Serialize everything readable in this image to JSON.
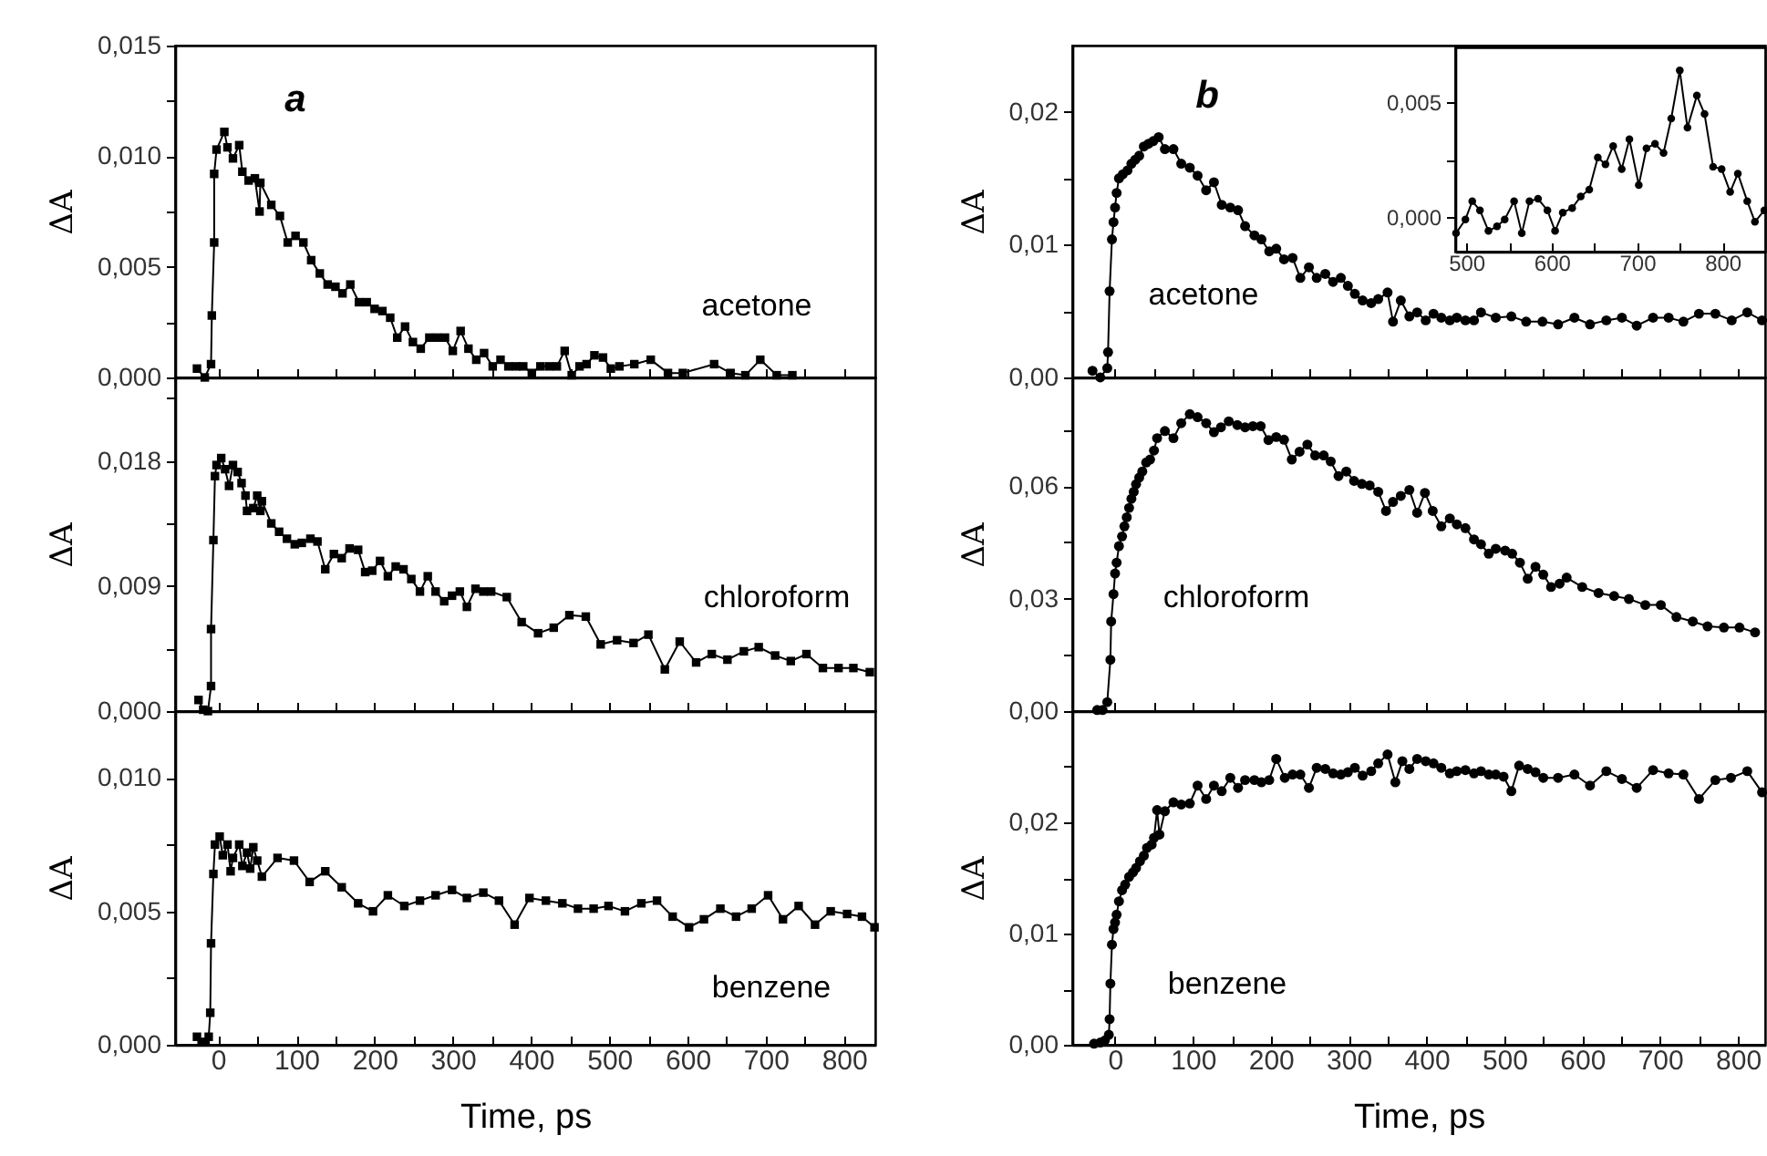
{
  "chart_data": [
    {
      "type": "line",
      "marker": "square",
      "tick_labels": "y",
      "ylabel": "ΔA",
      "xlim": [
        -55,
        840
      ],
      "ylim": [
        0,
        0.015
      ],
      "xticks": [
        0,
        {
          "value": 50,
          "label": null
        },
        100,
        {
          "value": 150,
          "label": null
        },
        200,
        {
          "value": 250,
          "label": null
        },
        300,
        {
          "value": 350,
          "label": null
        },
        400,
        {
          "value": 450,
          "label": null
        },
        500,
        {
          "value": 550,
          "label": null
        },
        600,
        {
          "value": 650,
          "label": null
        },
        700,
        {
          "value": 750,
          "label": null
        },
        800
      ],
      "yticks": [
        {
          "value": 0,
          "label": "0,000"
        },
        {
          "value": 0.0025,
          "label": null
        },
        {
          "value": 0.005,
          "label": "0,005"
        },
        {
          "value": 0.0075,
          "label": null
        },
        {
          "value": 0.01,
          "label": "0,010"
        },
        {
          "value": 0.0125,
          "label": null
        },
        {
          "value": 0.015,
          "label": "0,015"
        }
      ],
      "x": [
        -27,
        -17,
        -9,
        -8,
        -5,
        -5,
        -2,
        8,
        12,
        19,
        27,
        31,
        39,
        47,
        53,
        54,
        68,
        79,
        89,
        99,
        109,
        119,
        130,
        140,
        150,
        159,
        169,
        180,
        190,
        200,
        210,
        220,
        229,
        239,
        249,
        259,
        270,
        280,
        290,
        300,
        310,
        320,
        330,
        340,
        351,
        361,
        371,
        381,
        390,
        401,
        412,
        423,
        433,
        443,
        452,
        462,
        471,
        481,
        492,
        502,
        513,
        532,
        553,
        575,
        594,
        634,
        655,
        674,
        693,
        714,
        734
      ],
      "series": [
        {
          "color": "#000000",
          "values": [
            0.0004,
            0.0,
            0.0006,
            0.0028,
            0.0061,
            0.0092,
            0.0103,
            0.0111,
            0.0104,
            0.0099,
            0.0105,
            0.0093,
            0.0089,
            0.009,
            0.0075,
            0.0088,
            0.0078,
            0.0073,
            0.0061,
            0.0064,
            0.0061,
            0.0053,
            0.0047,
            0.0042,
            0.0041,
            0.0038,
            0.0042,
            0.0034,
            0.0034,
            0.0031,
            0.003,
            0.0027,
            0.0018,
            0.0023,
            0.0016,
            0.0013,
            0.0018,
            0.0018,
            0.0018,
            0.0012,
            0.0021,
            0.0013,
            0.0008,
            0.0011,
            0.0005,
            0.0008,
            0.0005,
            0.0005,
            0.0005,
            0.0002,
            0.0005,
            0.0005,
            0.0005,
            0.0012,
            0.0001,
            0.0005,
            0.0006,
            0.001,
            0.0009,
            0.0004,
            0.0005,
            0.0006,
            0.0008,
            0.0002,
            0.0002,
            0.0006,
            0.0002,
            0.0001,
            0.0008,
            0.0001,
            0.0001
          ]
        }
      ],
      "annotations": [
        "a",
        "acetone"
      ]
    },
    {
      "type": "line",
      "marker": "square",
      "tick_labels": "y",
      "ylabel": "ΔA",
      "xlim": [
        -55,
        840
      ],
      "ylim": [
        0,
        0.024
      ],
      "xticks": [
        0,
        {
          "value": 50,
          "label": null
        },
        100,
        {
          "value": 150,
          "label": null
        },
        200,
        {
          "value": 250,
          "label": null
        },
        300,
        {
          "value": 350,
          "label": null
        },
        400,
        {
          "value": 450,
          "label": null
        },
        500,
        {
          "value": 550,
          "label": null
        },
        600,
        {
          "value": 650,
          "label": null
        },
        700,
        {
          "value": 750,
          "label": null
        },
        800
      ],
      "yticks": [
        {
          "value": 0,
          "label": "0,000"
        },
        {
          "value": 0.0045,
          "label": null
        },
        {
          "value": 0.009,
          "label": "0,009"
        },
        {
          "value": 0.0135,
          "label": null
        },
        {
          "value": 0.018,
          "label": "0,018"
        },
        {
          "value": 0.0225,
          "label": null
        }
      ],
      "x": [
        -25,
        -19,
        -13,
        -9,
        -9,
        -6,
        -4,
        -2,
        4,
        9,
        14,
        19,
        25,
        30,
        35,
        37,
        45,
        50,
        54,
        56,
        68,
        78,
        88,
        98,
        107,
        118,
        127,
        137,
        148,
        158,
        168,
        179,
        188,
        197,
        207,
        217,
        227,
        237,
        247,
        258,
        268,
        278,
        289,
        299,
        309,
        318,
        329,
        339,
        349,
        369,
        388,
        409,
        429,
        449,
        470,
        489,
        510,
        531,
        550,
        571,
        590,
        611,
        631,
        651,
        672,
        691,
        712,
        732,
        752,
        773,
        793,
        812,
        833
      ],
      "series": [
        {
          "color": "#000000",
          "values": [
            0.0008,
            0.0001,
            0.0,
            0.0018,
            0.0059,
            0.0123,
            0.0169,
            0.0177,
            0.0182,
            0.0174,
            0.0162,
            0.0177,
            0.0172,
            0.0164,
            0.0155,
            0.0144,
            0.0146,
            0.0155,
            0.0144,
            0.0151,
            0.0135,
            0.0129,
            0.0124,
            0.012,
            0.0121,
            0.0124,
            0.0122,
            0.0102,
            0.0113,
            0.011,
            0.0117,
            0.0116,
            0.01,
            0.0101,
            0.0108,
            0.0097,
            0.0104,
            0.0102,
            0.0095,
            0.0086,
            0.0097,
            0.0086,
            0.0079,
            0.0083,
            0.0086,
            0.0075,
            0.0088,
            0.0086,
            0.0086,
            0.0082,
            0.0064,
            0.0056,
            0.006,
            0.0069,
            0.0068,
            0.0048,
            0.0051,
            0.0049,
            0.0055,
            0.003,
            0.005,
            0.0035,
            0.0041,
            0.0037,
            0.0043,
            0.0046,
            0.004,
            0.0036,
            0.0041,
            0.0031,
            0.0031,
            0.0031,
            0.0028
          ]
        }
      ],
      "annotations": [
        "chloroform"
      ]
    },
    {
      "type": "line",
      "marker": "square",
      "xlabel": "Time, ps",
      "ylabel": "ΔA",
      "xlim": [
        -55,
        840
      ],
      "ylim": [
        0,
        0.0125
      ],
      "xticks": [
        0,
        {
          "value": 50,
          "label": null
        },
        100,
        {
          "value": 150,
          "label": null
        },
        200,
        {
          "value": 250,
          "label": null
        },
        300,
        {
          "value": 350,
          "label": null
        },
        400,
        {
          "value": 450,
          "label": null
        },
        500,
        {
          "value": 550,
          "label": null
        },
        600,
        {
          "value": 650,
          "label": null
        },
        700,
        {
          "value": 750,
          "label": null
        },
        800
      ],
      "yticks": [
        {
          "value": 0,
          "label": "0,000"
        },
        {
          "value": 0.0025,
          "label": null
        },
        {
          "value": 0.005,
          "label": "0,005"
        },
        {
          "value": 0.0075,
          "label": null
        },
        {
          "value": 0.01,
          "label": "0,010"
        }
      ],
      "x": [
        -27,
        -21,
        -16,
        -12,
        -10,
        -9,
        -6,
        -4,
        2,
        6,
        12,
        16,
        19,
        27,
        31,
        37,
        41,
        45,
        50,
        56,
        76,
        97,
        117,
        137,
        158,
        179,
        198,
        217,
        238,
        258,
        278,
        299,
        318,
        339,
        359,
        379,
        398,
        419,
        440,
        460,
        480,
        499,
        520,
        541,
        561,
        581,
        602,
        621,
        642,
        662,
        682,
        703,
        722,
        742,
        763,
        783,
        804,
        823,
        839
      ],
      "series": [
        {
          "color": "#000000",
          "values": [
            0.0003,
            0.0001,
            0.0001,
            0.0003,
            0.0012,
            0.0038,
            0.0064,
            0.0075,
            0.0078,
            0.0071,
            0.0075,
            0.0065,
            0.007,
            0.0075,
            0.0067,
            0.0072,
            0.0066,
            0.0074,
            0.0069,
            0.0063,
            0.007,
            0.0069,
            0.0061,
            0.0065,
            0.0059,
            0.0053,
            0.005,
            0.0056,
            0.0052,
            0.0054,
            0.0056,
            0.0058,
            0.0055,
            0.0057,
            0.0054,
            0.0045,
            0.0055,
            0.0054,
            0.0053,
            0.0051,
            0.0051,
            0.0052,
            0.005,
            0.0053,
            0.0054,
            0.0048,
            0.0044,
            0.0047,
            0.0051,
            0.0048,
            0.0051,
            0.0056,
            0.0047,
            0.0052,
            0.0045,
            0.005,
            0.0049,
            0.0048,
            0.0044
          ]
        }
      ],
      "annotations": [
        "benzene"
      ]
    },
    {
      "type": "line",
      "marker": "circle",
      "tick_labels": "y",
      "ylabel": "ΔA",
      "xlim": [
        -55,
        835
      ],
      "ylim": [
        0,
        0.025
      ],
      "xticks": [
        0,
        {
          "value": 50,
          "label": null
        },
        100,
        {
          "value": 150,
          "label": null
        },
        200,
        {
          "value": 250,
          "label": null
        },
        300,
        {
          "value": 350,
          "label": null
        },
        400,
        {
          "value": 450,
          "label": null
        },
        500,
        {
          "value": 550,
          "label": null
        },
        600,
        {
          "value": 650,
          "label": null
        },
        700,
        {
          "value": 750,
          "label": null
        },
        800
      ],
      "yticks": [
        {
          "value": 0,
          "label": "0,00"
        },
        {
          "value": 0.005,
          "label": null
        },
        {
          "value": 0.01,
          "label": "0,01"
        },
        {
          "value": 0.015,
          "label": null
        },
        {
          "value": 0.02,
          "label": "0,02"
        }
      ],
      "x": [
        -29,
        -19,
        -10,
        -9,
        -7,
        -4,
        -2,
        0,
        2,
        5,
        10,
        16,
        21,
        26,
        31,
        37,
        43,
        49,
        56,
        64,
        75,
        85,
        96,
        106,
        117,
        127,
        137,
        148,
        158,
        167,
        179,
        188,
        198,
        207,
        217,
        228,
        238,
        249,
        259,
        270,
        280,
        290,
        299,
        308,
        318,
        329,
        338,
        350,
        357,
        367,
        378,
        388,
        399,
        409,
        419,
        430,
        439,
        450,
        461,
        470,
        489,
        509,
        528,
        549,
        569,
        590,
        610,
        631,
        651,
        670,
        691,
        711,
        730,
        750,
        771,
        792,
        812,
        831
      ],
      "series": [
        {
          "color": "#000000",
          "values": [
            0.0005,
            0.0,
            0.0007,
            0.0019,
            0.0065,
            0.0104,
            0.0117,
            0.0128,
            0.0139,
            0.015,
            0.0153,
            0.0156,
            0.0161,
            0.0164,
            0.0167,
            0.0174,
            0.0176,
            0.0178,
            0.0181,
            0.0172,
            0.0172,
            0.0161,
            0.0158,
            0.0152,
            0.0141,
            0.0147,
            0.013,
            0.0128,
            0.0126,
            0.0114,
            0.0107,
            0.0104,
            0.0095,
            0.0097,
            0.0089,
            0.009,
            0.0075,
            0.0083,
            0.0075,
            0.0078,
            0.0072,
            0.0075,
            0.0069,
            0.0063,
            0.0058,
            0.0056,
            0.0059,
            0.0064,
            0.0042,
            0.0058,
            0.0046,
            0.0049,
            0.0043,
            0.0048,
            0.0045,
            0.0043,
            0.0045,
            0.0043,
            0.0043,
            0.0049,
            0.0045,
            0.0046,
            0.0042,
            0.0042,
            0.004,
            0.0045,
            0.004,
            0.0043,
            0.0045,
            0.0039,
            0.0045,
            0.0045,
            0.0042,
            0.0048,
            0.0048,
            0.0043,
            0.0049,
            0.0043
          ]
        }
      ],
      "annotations": [
        "b",
        "acetone"
      ]
    },
    {
      "type": "line",
      "marker": "circle",
      "xlim": [
        487,
        850
      ],
      "ylim": [
        -0.0015,
        0.0074
      ],
      "xticks": [
        500,
        {
          "value": 550,
          "label": null
        },
        600,
        {
          "value": 650,
          "label": null
        },
        700,
        {
          "value": 750,
          "label": null
        },
        800
      ],
      "yticks": [
        {
          "value": 0,
          "label": "0,000"
        },
        {
          "value": 0.0025,
          "label": null
        },
        {
          "value": 0.005,
          "label": "0,005"
        }
      ],
      "x": [
        488,
        499,
        507,
        516,
        526,
        536,
        545,
        556,
        565,
        574,
        584,
        595,
        604,
        613,
        624,
        634,
        644,
        654,
        663,
        672,
        682,
        691,
        702,
        711,
        721,
        731,
        740,
        750,
        759,
        770,
        779,
        789,
        799,
        809,
        818,
        829,
        838,
        849
      ],
      "series": [
        {
          "color": "#000000",
          "values": [
            -0.0007,
            -0.0001,
            0.0007,
            0.0003,
            -0.0006,
            -0.0004,
            -0.0001,
            0.0007,
            -0.0007,
            0.0007,
            0.0008,
            0.0003,
            -0.0006,
            0.0002,
            0.0004,
            0.0009,
            0.0012,
            0.0026,
            0.0023,
            0.0031,
            0.0021,
            0.0034,
            0.0014,
            0.003,
            0.0032,
            0.0028,
            0.0043,
            0.0064,
            0.0039,
            0.0053,
            0.0045,
            0.0022,
            0.0021,
            0.0011,
            0.0019,
            0.0007,
            -0.0002,
            0.0003
          ]
        }
      ]
    },
    {
      "type": "line",
      "marker": "circle",
      "tick_labels": "y",
      "ylabel": "ΔA",
      "xlim": [
        -55,
        835
      ],
      "ylim": [
        0,
        0.089
      ],
      "xticks": [
        0,
        {
          "value": 50,
          "label": null
        },
        100,
        {
          "value": 150,
          "label": null
        },
        200,
        {
          "value": 250,
          "label": null
        },
        300,
        {
          "value": 350,
          "label": null
        },
        400,
        {
          "value": 450,
          "label": null
        },
        500,
        {
          "value": 550,
          "label": null
        },
        600,
        {
          "value": 650,
          "label": null
        },
        700,
        {
          "value": 750,
          "label": null
        },
        800
      ],
      "yticks": [
        {
          "value": 0,
          "label": "0,00"
        },
        {
          "value": 0.015,
          "label": null
        },
        {
          "value": 0.03,
          "label": "0,03"
        },
        {
          "value": 0.045,
          "label": null
        },
        {
          "value": 0.06,
          "label": "0,06"
        },
        {
          "value": 0.075,
          "label": null
        }
      ],
      "x": [
        -23,
        -16,
        -10,
        -6,
        -5,
        -2,
        0,
        2,
        5,
        9,
        12,
        15,
        18,
        21,
        24,
        27,
        31,
        35,
        40,
        45,
        50,
        54,
        64,
        75,
        85,
        96,
        106,
        117,
        127,
        136,
        146,
        157,
        167,
        177,
        187,
        197,
        207,
        217,
        227,
        237,
        247,
        257,
        268,
        277,
        287,
        297,
        307,
        317,
        327,
        338,
        348,
        357,
        367,
        378,
        388,
        398,
        408,
        419,
        430,
        439,
        450,
        461,
        470,
        480,
        489,
        501,
        510,
        520,
        530,
        540,
        550,
        560,
        571,
        580,
        600,
        621,
        641,
        660,
        681,
        701,
        721,
        742,
        761,
        782,
        802,
        822
      ],
      "series": [
        {
          "color": "#000000",
          "values": [
            0.0003,
            0.0003,
            0.0024,
            0.0137,
            0.0239,
            0.0312,
            0.0367,
            0.0396,
            0.044,
            0.0466,
            0.0493,
            0.0517,
            0.0542,
            0.0566,
            0.0585,
            0.0605,
            0.0623,
            0.0639,
            0.0663,
            0.0671,
            0.0695,
            0.0728,
            0.0747,
            0.0728,
            0.0768,
            0.0792,
            0.0784,
            0.0768,
            0.0744,
            0.0757,
            0.0773,
            0.0763,
            0.0757,
            0.076,
            0.076,
            0.0723,
            0.0731,
            0.0724,
            0.0671,
            0.0692,
            0.0711,
            0.0682,
            0.0682,
            0.0666,
            0.0627,
            0.0639,
            0.0614,
            0.0606,
            0.0602,
            0.0585,
            0.0534,
            0.0558,
            0.0574,
            0.059,
            0.0529,
            0.0582,
            0.0534,
            0.0493,
            0.0514,
            0.0498,
            0.0488,
            0.0458,
            0.0445,
            0.042,
            0.0433,
            0.0428,
            0.042,
            0.0396,
            0.0353,
            0.0385,
            0.0364,
            0.0331,
            0.034,
            0.0356,
            0.0331,
            0.0315,
            0.0307,
            0.0299,
            0.0283,
            0.0283,
            0.0251,
            0.0239,
            0.0226,
            0.0223,
            0.0223,
            0.021
          ]
        }
      ],
      "annotations": [
        "chloroform"
      ]
    },
    {
      "type": "line",
      "marker": "circle",
      "xlabel": "Time, ps",
      "ylabel": "ΔA",
      "xlim": [
        -55,
        835
      ],
      "ylim": [
        0,
        0.03
      ],
      "xticks": [
        0,
        {
          "value": 50,
          "label": null
        },
        100,
        {
          "value": 150,
          "label": null
        },
        200,
        {
          "value": 250,
          "label": null
        },
        300,
        {
          "value": 350,
          "label": null
        },
        400,
        {
          "value": 450,
          "label": null
        },
        500,
        {
          "value": 550,
          "label": null
        },
        600,
        {
          "value": 650,
          "label": null
        },
        700,
        {
          "value": 750,
          "label": null
        },
        800
      ],
      "yticks": [
        {
          "value": 0,
          "label": "0,00"
        },
        {
          "value": 0.005,
          "label": null
        },
        {
          "value": 0.01,
          "label": "0,01"
        },
        {
          "value": 0.015,
          "label": null
        },
        {
          "value": 0.02,
          "label": "0,02"
        },
        {
          "value": 0.025,
          "label": null
        }
      ],
      "x": [
        -27,
        -19,
        -13,
        -8,
        -7,
        -6,
        -4,
        -2,
        0,
        2,
        5,
        9,
        13,
        18,
        23,
        27,
        32,
        37,
        41,
        47,
        50,
        54,
        57,
        64,
        75,
        85,
        96,
        106,
        117,
        127,
        137,
        148,
        158,
        167,
        179,
        188,
        198,
        207,
        218,
        228,
        238,
        249,
        259,
        270,
        280,
        290,
        299,
        308,
        318,
        329,
        338,
        350,
        360,
        369,
        378,
        388,
        399,
        409,
        419,
        430,
        439,
        450,
        461,
        470,
        480,
        489,
        499,
        509,
        519,
        530,
        540,
        550,
        569,
        590,
        610,
        631,
        651,
        670,
        691,
        711,
        730,
        750,
        771,
        791,
        812,
        831
      ],
      "series": [
        {
          "color": "#000000",
          "values": [
            0.0001,
            0.0002,
            0.0004,
            0.0009,
            0.0023,
            0.0055,
            0.009,
            0.0104,
            0.011,
            0.0117,
            0.0129,
            0.0139,
            0.0144,
            0.0151,
            0.0155,
            0.0159,
            0.0165,
            0.017,
            0.0177,
            0.018,
            0.0186,
            0.0211,
            0.0189,
            0.021,
            0.0218,
            0.0216,
            0.0217,
            0.0233,
            0.0221,
            0.0233,
            0.0228,
            0.024,
            0.0231,
            0.0238,
            0.0238,
            0.0236,
            0.0238,
            0.0257,
            0.024,
            0.0243,
            0.0243,
            0.0231,
            0.0249,
            0.0248,
            0.0244,
            0.0243,
            0.0245,
            0.0249,
            0.0242,
            0.0246,
            0.0253,
            0.0261,
            0.0236,
            0.0255,
            0.0248,
            0.0257,
            0.0255,
            0.0253,
            0.0249,
            0.0244,
            0.0246,
            0.0247,
            0.0244,
            0.0246,
            0.0243,
            0.0243,
            0.0241,
            0.0228,
            0.0251,
            0.0248,
            0.0245,
            0.024,
            0.024,
            0.0243,
            0.0233,
            0.0246,
            0.0239,
            0.0231,
            0.0247,
            0.0244,
            0.0243,
            0.0221,
            0.0238,
            0.024,
            0.0246,
            0.0227
          ]
        }
      ],
      "annotations": [
        "benzene"
      ]
    }
  ]
}
